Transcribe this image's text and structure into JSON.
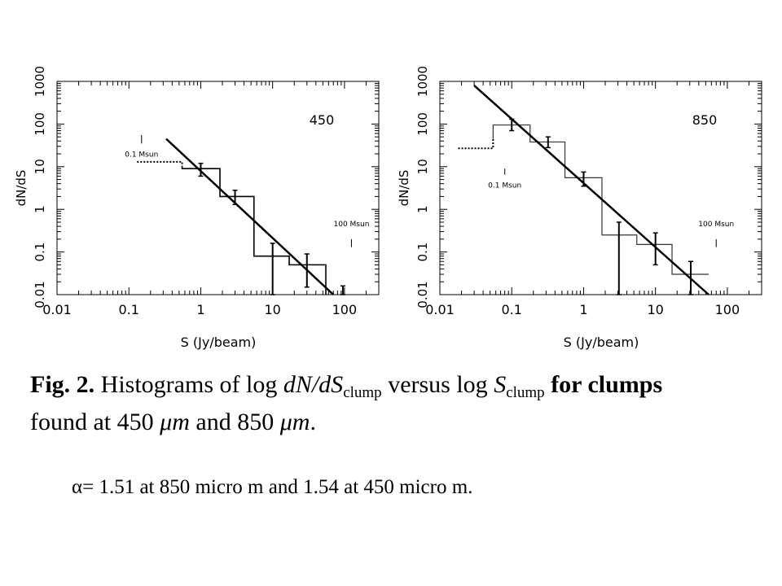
{
  "chart_data": [
    {
      "type": "line",
      "title": "",
      "panel_label": "450",
      "xlabel": "S (Jy/beam)",
      "ylabel": "dN/dS",
      "xscale": "log",
      "yscale": "log",
      "xlim": [
        0.01,
        300
      ],
      "ylim": [
        0.01,
        1000
      ],
      "xticks": [
        0.01,
        0.1,
        1,
        10,
        100
      ],
      "xtick_labels": [
        "0.01",
        "0.1",
        "1",
        "10",
        "100"
      ],
      "yticks": [
        0.01,
        0.1,
        1,
        10,
        100,
        1000
      ],
      "ytick_labels": [
        "0.01",
        "0.1",
        "1",
        "10",
        "100",
        "1000"
      ],
      "histogram_steps": [
        [
          0.55,
          10
        ],
        [
          0.55,
          9
        ],
        [
          1.85,
          9
        ],
        [
          1.85,
          2
        ],
        [
          5.5,
          2
        ],
        [
          5.5,
          0.08
        ],
        [
          17,
          0.08
        ],
        [
          17,
          0.05
        ],
        [
          55,
          0.05
        ],
        [
          55,
          0.01
        ]
      ],
      "completeness_extension": [
        [
          0.13,
          13
        ],
        [
          0.55,
          13
        ],
        [
          0.55,
          10
        ]
      ],
      "fit_line": {
        "x": [
          0.33,
          70
        ],
        "y": [
          45,
          0.01
        ]
      },
      "error_bars": [
        {
          "x": 1.0,
          "low": 6,
          "high": 12
        },
        {
          "x": 3.0,
          "low": 1.3,
          "high": 2.8
        },
        {
          "x": 10.0,
          "low": 0.01,
          "high": 0.16
        },
        {
          "x": 30.0,
          "low": 0.015,
          "high": 0.09
        },
        {
          "x": 95.0,
          "low": 0.01,
          "high": 0.016
        }
      ],
      "mass_markers": [
        {
          "label": "0.1 Msun",
          "x": 0.15,
          "y_tick": [
            35,
            55
          ],
          "label_pos": "below"
        },
        {
          "label": "100 Msun",
          "x": 125,
          "y_tick": [
            0.13,
            0.2
          ],
          "label_pos": "above"
        }
      ]
    },
    {
      "type": "line",
      "title": "",
      "panel_label": "850",
      "xlabel": "S (Jy/beam)",
      "ylabel": "dN/dS",
      "xscale": "log",
      "yscale": "log",
      "xlim": [
        0.01,
        300
      ],
      "ylim": [
        0.01,
        1000
      ],
      "xticks": [
        0.01,
        0.1,
        1,
        10,
        100
      ],
      "xtick_labels": [
        "0.01",
        "0.1",
        "1",
        "10",
        "100"
      ],
      "yticks": [
        0.01,
        0.1,
        1,
        10,
        100,
        1000
      ],
      "ytick_labels": [
        "0.01",
        "0.1",
        "1",
        "10",
        "100",
        "1000"
      ],
      "histogram_steps": [
        [
          0.055,
          45
        ],
        [
          0.055,
          95
        ],
        [
          0.18,
          95
        ],
        [
          0.18,
          38
        ],
        [
          0.55,
          38
        ],
        [
          0.55,
          5.5
        ],
        [
          1.8,
          5.5
        ],
        [
          1.8,
          0.25
        ],
        [
          5.5,
          0.25
        ],
        [
          5.5,
          0.15
        ],
        [
          17,
          0.15
        ],
        [
          17,
          0.03
        ],
        [
          55,
          0.03
        ]
      ],
      "completeness_extension": [
        [
          0.018,
          27
        ],
        [
          0.055,
          27
        ],
        [
          0.055,
          45
        ]
      ],
      "fit_line": {
        "x": [
          0.03,
          55
        ],
        "y": [
          800,
          0.01
        ]
      },
      "error_bars": [
        {
          "x": 0.1,
          "low": 70,
          "high": 130
        },
        {
          "x": 0.32,
          "low": 28,
          "high": 50
        },
        {
          "x": 1.0,
          "low": 3.5,
          "high": 7.5
        },
        {
          "x": 3.1,
          "low": 0.01,
          "high": 0.5
        },
        {
          "x": 10.0,
          "low": 0.05,
          "high": 0.28
        },
        {
          "x": 31.0,
          "low": 0.01,
          "high": 0.06
        }
      ],
      "mass_markers": [
        {
          "label": "0.1 Msun",
          "x": 0.08,
          "y_tick": [
            6.5,
            9
          ],
          "label_pos": "below"
        },
        {
          "label": "100 Msun",
          "x": 70,
          "y_tick": [
            0.13,
            0.2
          ],
          "label_pos": "above"
        }
      ]
    }
  ],
  "caption": {
    "label": "Fig. 2.",
    "t1": "Histograms of log",
    "m1": "dN/dS",
    "m1_sub": "clump",
    "t2": "versus log",
    "m2": "S",
    "m2_sub": "clump",
    "t3": "for clumps",
    "t4": "found at 450",
    "unit": "μm",
    "t5": "and 850",
    "t6": "."
  },
  "note": "α= 1.51 at 850 micro m and 1.54 at 450 micro m."
}
